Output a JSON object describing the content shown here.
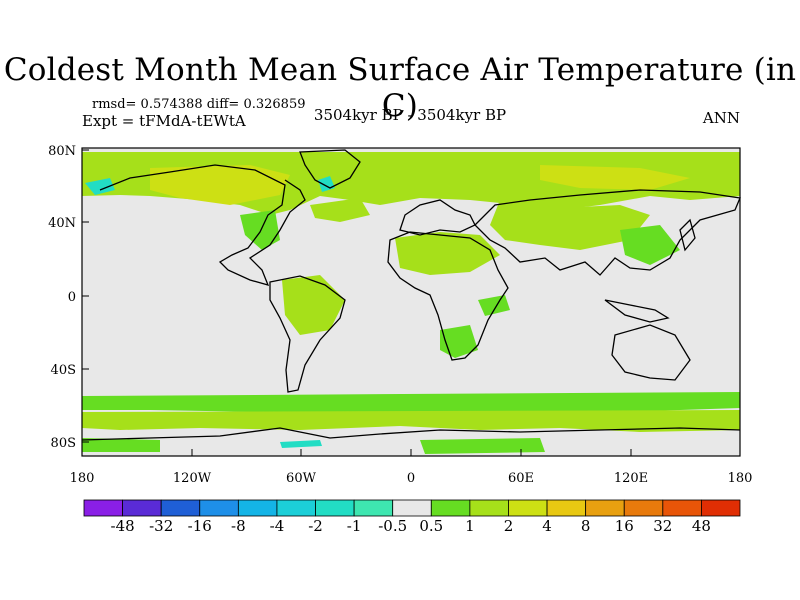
{
  "title": "Coldest Month Mean Surface Air Temperature (in C)",
  "stats": {
    "text": "rmsd= 0.574388  diff= 0.326859"
  },
  "experiment": "Expt = tFMdA-tEWtA",
  "period": "3504kyr BP - 3504kyr BP",
  "season": "ANN",
  "axes": {
    "y_ticks": [
      "80N",
      "40N",
      "0",
      "40S",
      "80S"
    ],
    "x_ticks": [
      "180",
      "120W",
      "60W",
      "0",
      "60E",
      "120E",
      "180"
    ]
  },
  "colorbar": {
    "labels": [
      "-48",
      "-32",
      "-16",
      "-8",
      "-4",
      "-2",
      "-1",
      "-0.5",
      "0.5",
      "1",
      "2",
      "4",
      "8",
      "16",
      "32",
      "48"
    ],
    "colors": [
      "#8a1fe6",
      "#5a2bd6",
      "#1f5fd6",
      "#1e8fe8",
      "#14b4e6",
      "#1ccfd8",
      "#22ddc4",
      "#3ee6b0",
      "#e8e8e8",
      "#66dd22",
      "#a6e01a",
      "#cde014",
      "#e8c812",
      "#e8a010",
      "#e87a0c",
      "#e85508",
      "#e02e04"
    ]
  },
  "colors": {
    "land_outline": "#000000",
    "background": "#e8e8e8",
    "warm_small": "#66dd22",
    "warm_medium": "#a6e01a",
    "warm_high": "#cde014",
    "cool": "#22ddc4"
  }
}
